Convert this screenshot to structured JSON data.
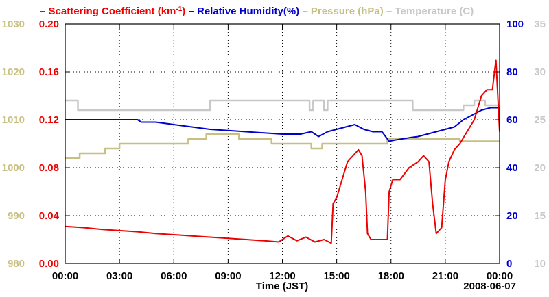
{
  "chart_data": {
    "type": "line",
    "title": "",
    "date_label": "2008-06-07",
    "xlabel": "Time (JST)",
    "x_ticks": [
      "00:00",
      "03:00",
      "06:00",
      "09:00",
      "12:00",
      "15:00",
      "18:00",
      "21:00",
      "00:00"
    ],
    "xlim": [
      0,
      24
    ],
    "grid": true,
    "legend": {
      "placement": "top",
      "entries": [
        {
          "dash": "–",
          "name": "Scattering Coefficient (km",
          "sup": "-1",
          "tail": ")",
          "color": "#ee0000"
        },
        {
          "dash": "–",
          "name": "Relative Humidity(%)",
          "color": "#0000cc"
        },
        {
          "dash": "–",
          "name": "Pressure (hPa)",
          "color": "#c8c082"
        },
        {
          "dash": "–",
          "name": "Temperature (C)",
          "color": "#c8c8c8"
        }
      ]
    },
    "axes": {
      "pressure": {
        "side": "left-outer",
        "ylim": [
          980,
          1030
        ],
        "ticks": [
          "980",
          "990",
          "1000",
          "1010",
          "1020",
          "1030"
        ],
        "color": "#c8c082"
      },
      "scattering": {
        "side": "left-inner",
        "ylim": [
          0,
          0.2
        ],
        "ticks": [
          "0.00",
          "0.04",
          "0.08",
          "0.12",
          "0.16",
          "0.20"
        ],
        "color": "#ee0000"
      },
      "humidity": {
        "side": "right-inner",
        "ylim": [
          0,
          100
        ],
        "ticks": [
          "0",
          "20",
          "40",
          "60",
          "80",
          "100"
        ],
        "color": "#0000cc"
      },
      "temperature": {
        "side": "right-outer",
        "ylim": [
          10,
          35
        ],
        "ticks": [
          "10",
          "15",
          "20",
          "25",
          "30",
          "35"
        ],
        "color": "#c8c8c8"
      }
    },
    "series": [
      {
        "name": "Temperature",
        "axis": "temperature",
        "color": "#c8c8c8",
        "step": true,
        "x": [
          0,
          0.7,
          0.7,
          8,
          8,
          13.5,
          13.5,
          13.7,
          13.7,
          14.3,
          14.3,
          14.5,
          14.5,
          19.2,
          19.2,
          22,
          22,
          22.6,
          22.6,
          23.2,
          23.2,
          24
        ],
        "y": [
          27,
          27,
          26,
          26,
          27,
          27,
          26,
          26,
          27,
          27,
          26,
          26,
          27,
          27,
          26,
          26,
          26.5,
          26.5,
          27,
          27,
          26.5,
          26.5
        ]
      },
      {
        "name": "Pressure",
        "axis": "pressure",
        "color": "#c8c082",
        "step": true,
        "x": [
          0,
          0.8,
          0.8,
          2.2,
          2.2,
          3,
          3,
          6.8,
          6.8,
          7.8,
          7.8,
          9.6,
          9.6,
          11.4,
          11.4,
          13.6,
          13.6,
          14.2,
          14.2,
          17.8,
          17.8,
          21.8,
          21.8,
          24
        ],
        "y": [
          1002,
          1002,
          1003,
          1003,
          1004,
          1004,
          1005,
          1005,
          1006,
          1006,
          1007,
          1007,
          1006,
          1006,
          1005,
          1005,
          1004,
          1004,
          1005,
          1005,
          1006,
          1006,
          1005.5,
          1005.5
        ]
      },
      {
        "name": "Relative Humidity",
        "axis": "humidity",
        "color": "#0000cc",
        "x": [
          0,
          1,
          2,
          3,
          4,
          4.2,
          5,
          6,
          7,
          8,
          9,
          10,
          11,
          12,
          13,
          13.6,
          14,
          14.5,
          15,
          15.5,
          16,
          16.5,
          17,
          17.5,
          17.9,
          18.2,
          18.6,
          19,
          19.5,
          20,
          20.5,
          21,
          21.5,
          22,
          22.5,
          23,
          23.5,
          24
        ],
        "y": [
          60,
          60,
          60,
          60,
          60,
          59,
          59,
          58,
          57,
          56,
          55.5,
          55,
          54.5,
          54,
          54,
          55,
          53,
          55,
          56,
          57,
          58,
          56,
          55,
          55,
          51,
          51.5,
          52,
          52.5,
          53,
          54,
          55,
          56,
          57,
          60,
          62,
          64,
          65,
          65
        ]
      },
      {
        "name": "Scattering Coefficient",
        "axis": "scattering",
        "color": "#ee0000",
        "x": [
          0,
          1,
          2,
          3,
          4,
          5,
          6,
          7,
          8,
          9,
          10,
          11,
          11.8,
          12.3,
          12.8,
          13.3,
          13.8,
          14.3,
          14.7,
          14.8,
          15,
          15.3,
          15.6,
          15.9,
          16.2,
          16.4,
          16.6,
          16.7,
          16.9,
          17.3,
          17.8,
          17.9,
          18.1,
          18.5,
          19,
          19.5,
          19.8,
          20.1,
          20.3,
          20.5,
          20.8,
          21,
          21.2,
          21.5,
          21.8,
          22.2,
          22.6,
          23,
          23.3,
          23.6,
          23.8,
          24
        ],
        "y": [
          0.031,
          0.03,
          0.0285,
          0.0275,
          0.0265,
          0.025,
          0.024,
          0.023,
          0.022,
          0.021,
          0.02,
          0.019,
          0.018,
          0.023,
          0.019,
          0.022,
          0.018,
          0.02,
          0.017,
          0.05,
          0.055,
          0.07,
          0.085,
          0.09,
          0.095,
          0.09,
          0.06,
          0.025,
          0.02,
          0.02,
          0.02,
          0.06,
          0.07,
          0.07,
          0.08,
          0.085,
          0.09,
          0.085,
          0.05,
          0.025,
          0.03,
          0.07,
          0.085,
          0.095,
          0.1,
          0.11,
          0.12,
          0.14,
          0.145,
          0.145,
          0.17,
          0.11
        ]
      }
    ]
  }
}
